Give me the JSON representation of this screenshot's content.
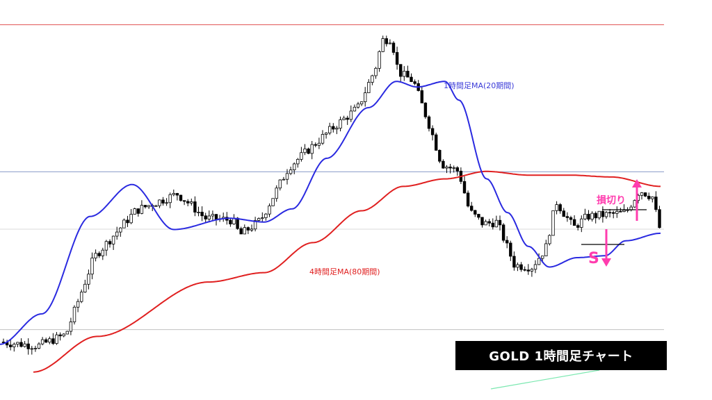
{
  "chart_data": {
    "type": "candlestick",
    "instrument": "GOLD",
    "title": "GOLD  1時間足チャート",
    "ylim": [
      0,
      100
    ],
    "grid": false,
    "horizontal_lines": [
      {
        "y": 97.1,
        "color": "#e05050"
      },
      {
        "y": 57.9,
        "color": "#8a9ac8"
      },
      {
        "y": 42.6,
        "color": "#d8d8d8"
      },
      {
        "y": 15.8,
        "color": "#c0c0c0"
      }
    ],
    "series": [
      {
        "name": "1時間足MA(20期間)",
        "color": "#2a2ae0"
      },
      {
        "name": "4時間足MA(80期間)",
        "color": "#e02020"
      }
    ],
    "ma_fast_key_values": [
      [
        0,
        11.9
      ],
      [
        60,
        20.0
      ],
      [
        130,
        46.0
      ],
      [
        190,
        54.5
      ],
      [
        250,
        42.5
      ],
      [
        330,
        45.5
      ],
      [
        380,
        44.5
      ],
      [
        420,
        48.0
      ],
      [
        470,
        61.5
      ],
      [
        530,
        75.0
      ],
      [
        570,
        82.0
      ],
      [
        600,
        80.5
      ],
      [
        640,
        82.0
      ],
      [
        660,
        77.0
      ],
      [
        700,
        56.0
      ],
      [
        730,
        47.0
      ],
      [
        760,
        38.0
      ],
      [
        790,
        32.5
      ],
      [
        830,
        35.0
      ],
      [
        870,
        35.5
      ],
      [
        900,
        39.5
      ],
      [
        950,
        41.5
      ]
    ],
    "ma_slow_key_values": [
      [
        48,
        4.5
      ],
      [
        140,
        14.0
      ],
      [
        300,
        28.5
      ],
      [
        380,
        31.0
      ],
      [
        450,
        39.0
      ],
      [
        520,
        47.5
      ],
      [
        580,
        54.0
      ],
      [
        640,
        56.0
      ],
      [
        700,
        58.0
      ],
      [
        760,
        57.0
      ],
      [
        820,
        57.0
      ],
      [
        880,
        56.5
      ],
      [
        950,
        54.0
      ]
    ],
    "annotations": {
      "ma_fast_label": "1時間足MA(20期間)",
      "ma_slow_label": "4時間足MA(80期間)",
      "stop_loss_label": "損切り",
      "sell_label": "S"
    }
  },
  "colors": {
    "bull": "#ffffff",
    "bear": "#000000",
    "wick": "#000000",
    "ma_fast": "#2a2ae0",
    "ma_slow": "#e02020",
    "accent": "#ff3cae",
    "green_line": "#7be8b0"
  }
}
